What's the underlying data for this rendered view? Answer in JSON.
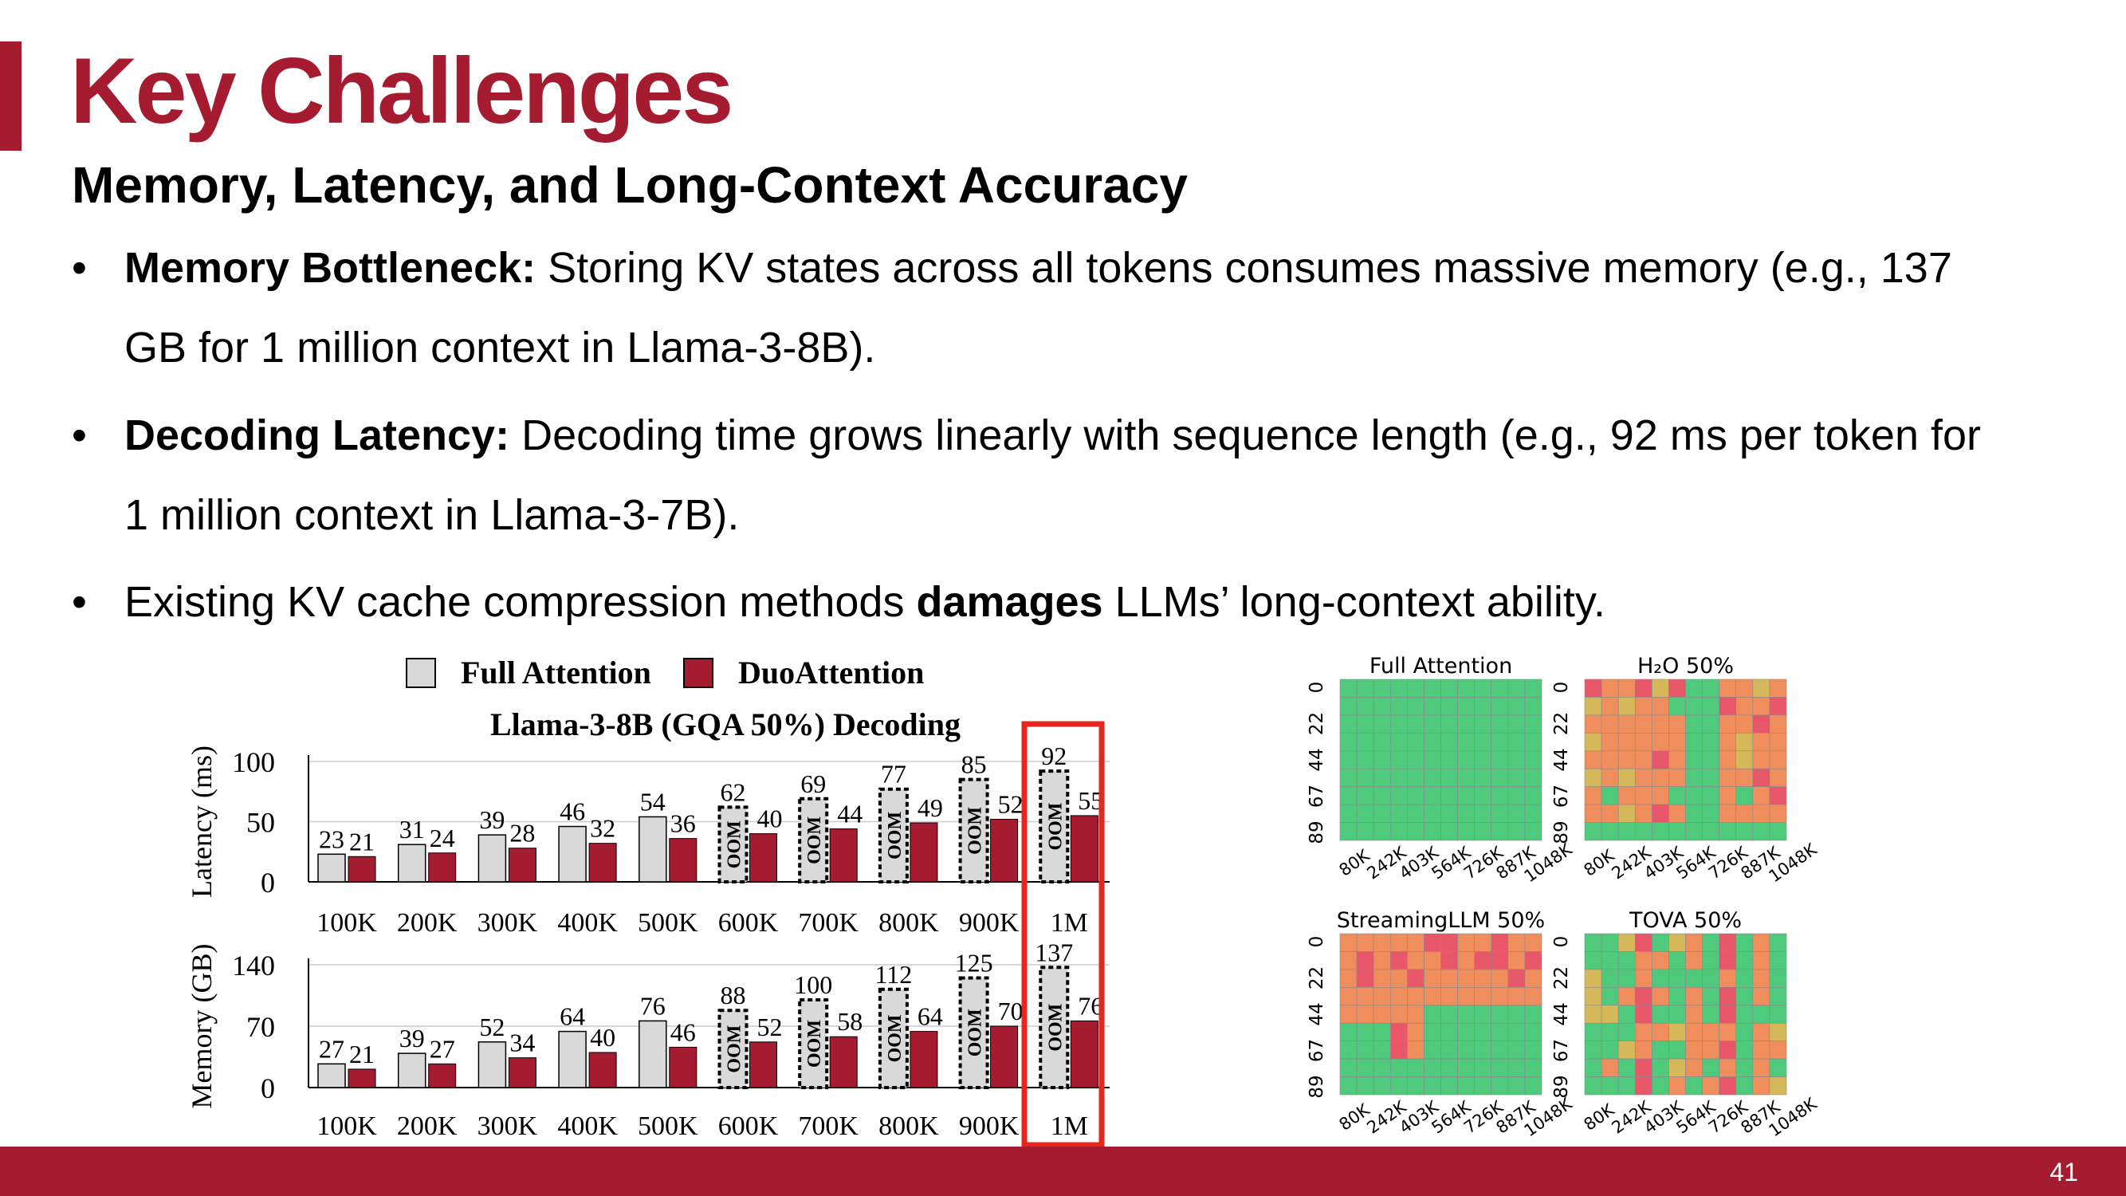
{
  "slide": {
    "title": "Key Challenges",
    "subtitle": "Memory, Latency, and Long-Context Accuracy",
    "page_number": "41",
    "accent_color": "#a51c30"
  },
  "bullets": [
    {
      "bold": "Memory Bottleneck:",
      "line1": " Storing KV states across all tokens consumes massive memory (e.g., 137",
      "line2": "GB for 1 million context in Llama-3-8B)."
    },
    {
      "bold": "Decoding Latency:",
      "line1": " Decoding time grows linearly with sequence length (e.g., 92 ms per token for",
      "line2": "1 million context in Llama-3-7B)."
    },
    {
      "pre": "Existing KV cache compression methods ",
      "bold": "damages",
      "post": " LLMs’ long-context ability."
    }
  ],
  "chart_data": [
    {
      "type": "bar",
      "title": "Llama-3-8B (GQA 50%) Decoding",
      "ylabel": "Latency (ms)",
      "ylim": [
        0,
        100
      ],
      "yticks": [
        "0",
        "50",
        "100"
      ],
      "categories": [
        "100K",
        "200K",
        "300K",
        "400K",
        "500K",
        "600K",
        "700K",
        "800K",
        "900K",
        "1M"
      ],
      "series": [
        {
          "name": "Full Attention",
          "values": [
            23,
            31,
            39,
            46,
            54,
            62,
            69,
            77,
            85,
            92
          ],
          "color": "#d9d9d9"
        },
        {
          "name": "DuoAttention",
          "values": [
            21,
            24,
            28,
            32,
            36,
            40,
            44,
            49,
            52,
            55
          ],
          "color": "#a51c30"
        }
      ],
      "oom_label": "OOM",
      "full_attention_oom": [
        false,
        false,
        false,
        false,
        false,
        true,
        true,
        true,
        true,
        true
      ]
    },
    {
      "type": "bar",
      "ylabel": "Memory (GB)",
      "ylim": [
        0,
        140
      ],
      "yticks": [
        "0",
        "70",
        "140"
      ],
      "categories": [
        "100K",
        "200K",
        "300K",
        "400K",
        "500K",
        "600K",
        "700K",
        "800K",
        "900K",
        "1M"
      ],
      "series": [
        {
          "name": "Full Attention",
          "values": [
            27,
            39,
            52,
            64,
            76,
            88,
            100,
            112,
            125,
            137
          ],
          "color": "#d9d9d9"
        },
        {
          "name": "DuoAttention",
          "values": [
            21,
            27,
            34,
            40,
            46,
            52,
            58,
            64,
            70,
            76
          ],
          "color": "#a51c30"
        }
      ],
      "oom_label": "OOM",
      "full_attention_oom": [
        false,
        false,
        false,
        false,
        false,
        true,
        true,
        true,
        true,
        true
      ]
    }
  ],
  "heatmaps": {
    "y_ticks": [
      "0",
      "22",
      "44",
      "67",
      "89"
    ],
    "x_ticks": [
      "80K",
      "242K",
      "403K",
      "564K",
      "726K",
      "887K",
      "1048K"
    ],
    "panels": [
      {
        "title": "Full Attention",
        "pattern": "full"
      },
      {
        "title": "H₂O 50%",
        "pattern": "h2o"
      },
      {
        "title": "StreamingLLM 50%",
        "pattern": "streaming"
      },
      {
        "title": "TOVA 50%",
        "pattern": "tova"
      }
    ],
    "palette": {
      "good": "#4fca7d",
      "mid": "#d4b85a",
      "bad": "#ef8e5c",
      "worst": "#e8566a"
    }
  }
}
